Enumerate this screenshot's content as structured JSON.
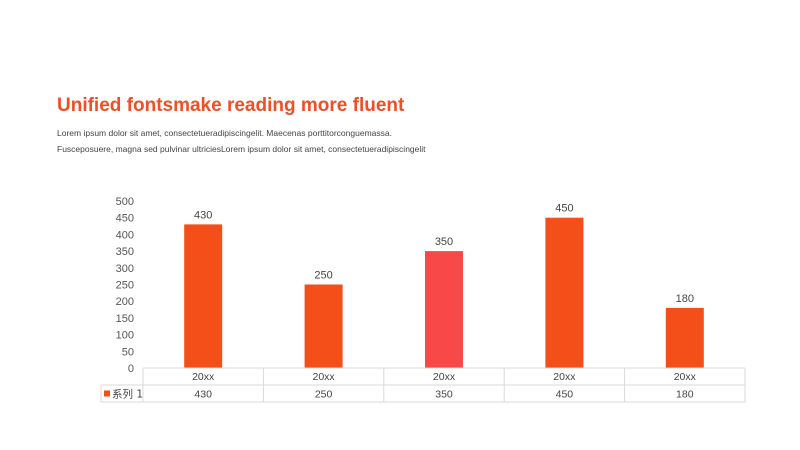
{
  "slide": {
    "title": "Unified fontsmake reading more fluent",
    "body_lines": [
      "Lorem ipsum dolor sit amet, consectetueradipiscingelit.  Maecenas porttitorconguemassa.",
      "Fusceposuere, magna sed pulvinar  ultriciesLorem ipsum dolor sit amet, consectetueradipiscingelit"
    ]
  },
  "chart_data": {
    "type": "bar",
    "categories": [
      "20xx",
      "20xx",
      "20xx",
      "20xx",
      "20xx"
    ],
    "series": [
      {
        "name": "系列 1",
        "values": [
          430,
          250,
          350,
          450,
          180
        ]
      }
    ],
    "ylim": [
      0,
      500
    ],
    "yticks": [
      0,
      50,
      100,
      150,
      200,
      250,
      300,
      350,
      400,
      450,
      500
    ],
    "data_labels": true,
    "data_table": true,
    "grid": false,
    "colors": {
      "bar": "#F44E19",
      "highlight_bar": "#F94848",
      "highlight_index": 2,
      "title": "#F04E23"
    }
  }
}
